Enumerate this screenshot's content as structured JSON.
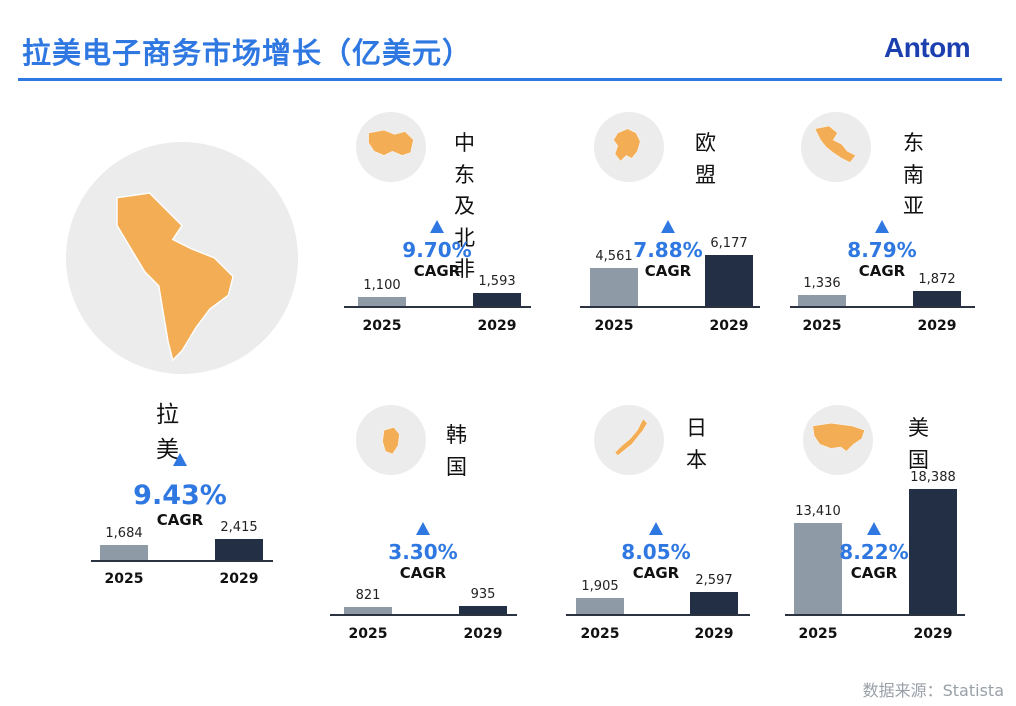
{
  "header": {
    "title": "拉美电子商务市场增长（亿美元）",
    "logo": "Antom",
    "source": "数据来源：Statista"
  },
  "colors": {
    "accent": "#2f78e2",
    "bar_2025": "#8e9ba7",
    "bar_2029": "#222f44",
    "map_highlight": "#f3ad55",
    "globe": "#ececec"
  },
  "chart_data": [
    {
      "type": "bar",
      "region": "拉美",
      "map_icon": "latin-america-globe-icon",
      "categories": [
        "2025",
        "2029"
      ],
      "values": [
        1684,
        2415
      ],
      "value_labels": [
        "1,684",
        "2,415"
      ],
      "cagr": "9.43%",
      "cagr_label": "CAGR"
    },
    {
      "type": "bar",
      "region": "中东及\n北非",
      "map_icon": "middle-east-north-africa-globe-icon",
      "categories": [
        "2025",
        "2029"
      ],
      "values": [
        1100,
        1593
      ],
      "value_labels": [
        "1,100",
        "1,593"
      ],
      "cagr": "9.70%",
      "cagr_label": "CAGR"
    },
    {
      "type": "bar",
      "region": "欧盟",
      "map_icon": "europe-globe-icon",
      "categories": [
        "2025",
        "2029"
      ],
      "values": [
        4561,
        6177
      ],
      "value_labels": [
        "4,561",
        "6,177"
      ],
      "cagr": "7.88%",
      "cagr_label": "CAGR"
    },
    {
      "type": "bar",
      "region": "东南亚",
      "map_icon": "southeast-asia-globe-icon",
      "categories": [
        "2025",
        "2029"
      ],
      "values": [
        1336,
        1872
      ],
      "value_labels": [
        "1,336",
        "1,872"
      ],
      "cagr": "8.79%",
      "cagr_label": "CAGR"
    },
    {
      "type": "bar",
      "region": "韩国",
      "map_icon": "korea-globe-icon",
      "categories": [
        "2025",
        "2029"
      ],
      "values": [
        821,
        935
      ],
      "value_labels": [
        "821",
        "935"
      ],
      "cagr": "3.30%",
      "cagr_label": "CAGR"
    },
    {
      "type": "bar",
      "region": "日本",
      "map_icon": "japan-globe-icon",
      "categories": [
        "2025",
        "2029"
      ],
      "values": [
        1905,
        2597
      ],
      "value_labels": [
        "1,905",
        "2,597"
      ],
      "cagr": "8.05%",
      "cagr_label": "CAGR"
    },
    {
      "type": "bar",
      "region": "美国",
      "map_icon": "usa-globe-icon",
      "categories": [
        "2025",
        "2029"
      ],
      "values": [
        13410,
        18388
      ],
      "value_labels": [
        "13,410",
        "18,388"
      ],
      "cagr": "8.22%",
      "cagr_label": "CAGR"
    }
  ]
}
